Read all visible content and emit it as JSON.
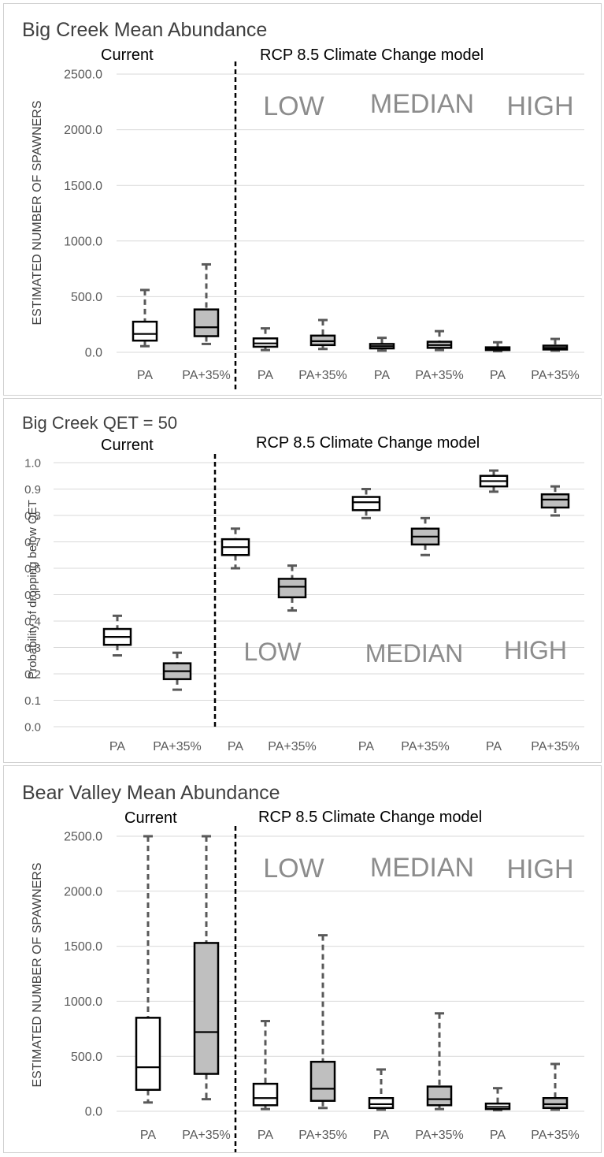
{
  "chart_data": [
    {
      "type": "boxplot",
      "title": "Big Creek Mean Abundance",
      "ylabel": "ESTIMATED NUMBER OF SPAWNERS",
      "ylim": [
        0,
        2500
      ],
      "yticks": [
        "0.0",
        "500.0",
        "1000.0",
        "1500.0",
        "2000.0",
        "2500.0"
      ],
      "grid": true,
      "current_label": "Current",
      "model_label": "RCP 8.5 Climate Change model",
      "scenario_labels": [
        "LOW",
        "MEDIAN",
        "HIGH"
      ],
      "categories": [
        "PA",
        "PA+35%",
        "PA",
        "PA+35%",
        "PA",
        "PA+35%",
        "PA",
        "PA+35%"
      ],
      "boxes": [
        {
          "min": 55,
          "q1": 105,
          "median": 165,
          "q3": 275,
          "max": 560,
          "fill": "#ffffff"
        },
        {
          "min": 75,
          "q1": 145,
          "median": 225,
          "q3": 385,
          "max": 790,
          "fill": "#bfbfbf"
        },
        {
          "min": 20,
          "q1": 50,
          "median": 80,
          "q3": 125,
          "max": 215,
          "fill": "#ffffff"
        },
        {
          "min": 30,
          "q1": 65,
          "median": 100,
          "q3": 150,
          "max": 290,
          "fill": "#bfbfbf"
        },
        {
          "min": 15,
          "q1": 35,
          "median": 55,
          "q3": 75,
          "max": 130,
          "fill": "#ffffff"
        },
        {
          "min": 20,
          "q1": 40,
          "median": 65,
          "q3": 95,
          "max": 190,
          "fill": "#bfbfbf"
        },
        {
          "min": 10,
          "q1": 20,
          "median": 35,
          "q3": 45,
          "max": 90,
          "fill": "#ffffff"
        },
        {
          "min": 15,
          "q1": 25,
          "median": 40,
          "q3": 60,
          "max": 120,
          "fill": "#bfbfbf"
        }
      ]
    },
    {
      "type": "boxplot",
      "title": "Big Creek  QET = 50",
      "ylabel": "Probability of dropping below QET",
      "ylim": [
        0,
        1
      ],
      "yticks": [
        "0.0",
        "0.1",
        "0.2",
        "0.3",
        "0.4",
        "0.5",
        "0.6",
        "0.7",
        "0.8",
        "0.9",
        "1.0"
      ],
      "grid": true,
      "current_label": "Current",
      "model_label": "RCP 8.5 Climate Change model",
      "scenario_labels": [
        "LOW",
        "MEDIAN",
        "HIGH"
      ],
      "categories": [
        "PA",
        "PA+35%",
        "PA",
        "PA+35%",
        "PA",
        "PA+35%",
        "PA",
        "PA+35%"
      ],
      "boxes": [
        {
          "min": 0.27,
          "q1": 0.31,
          "median": 0.34,
          "q3": 0.37,
          "max": 0.42,
          "fill": "#ffffff"
        },
        {
          "min": 0.14,
          "q1": 0.18,
          "median": 0.21,
          "q3": 0.24,
          "max": 0.28,
          "fill": "#bfbfbf"
        },
        {
          "min": 0.6,
          "q1": 0.65,
          "median": 0.68,
          "q3": 0.71,
          "max": 0.75,
          "fill": "#ffffff"
        },
        {
          "min": 0.44,
          "q1": 0.49,
          "median": 0.53,
          "q3": 0.56,
          "max": 0.61,
          "fill": "#bfbfbf"
        },
        {
          "min": 0.79,
          "q1": 0.82,
          "median": 0.85,
          "q3": 0.87,
          "max": 0.9,
          "fill": "#ffffff"
        },
        {
          "min": 0.65,
          "q1": 0.69,
          "median": 0.72,
          "q3": 0.75,
          "max": 0.79,
          "fill": "#bfbfbf"
        },
        {
          "min": 0.89,
          "q1": 0.91,
          "median": 0.93,
          "q3": 0.95,
          "max": 0.97,
          "fill": "#ffffff"
        },
        {
          "min": 0.8,
          "q1": 0.83,
          "median": 0.86,
          "q3": 0.88,
          "max": 0.91,
          "fill": "#bfbfbf"
        }
      ]
    },
    {
      "type": "boxplot",
      "title": "Bear Valley Mean Abundance",
      "ylabel": "ESTIMATED NUMBER OF SPAWNERS",
      "ylim": [
        0,
        2500
      ],
      "yticks": [
        "0.0",
        "500.0",
        "1000.0",
        "1500.0",
        "2000.0",
        "2500.0"
      ],
      "grid": true,
      "current_label": "Current",
      "model_label": "RCP 8.5 Climate Change model",
      "scenario_labels": [
        "LOW",
        "MEDIAN",
        "HIGH"
      ],
      "categories": [
        "PA",
        "PA+35%",
        "PA",
        "PA+35%",
        "PA",
        "PA+35%",
        "PA",
        "PA+35%"
      ],
      "boxes": [
        {
          "min": 80,
          "q1": 195,
          "median": 400,
          "q3": 850,
          "max": 2500,
          "fill": "#ffffff"
        },
        {
          "min": 110,
          "q1": 340,
          "median": 720,
          "q3": 1530,
          "max": 2500,
          "fill": "#bfbfbf"
        },
        {
          "min": 20,
          "q1": 55,
          "median": 120,
          "q3": 250,
          "max": 820,
          "fill": "#ffffff"
        },
        {
          "min": 30,
          "q1": 95,
          "median": 205,
          "q3": 450,
          "max": 1600,
          "fill": "#bfbfbf"
        },
        {
          "min": 15,
          "q1": 30,
          "median": 65,
          "q3": 120,
          "max": 380,
          "fill": "#ffffff"
        },
        {
          "min": 20,
          "q1": 55,
          "median": 110,
          "q3": 225,
          "max": 890,
          "fill": "#bfbfbf"
        },
        {
          "min": 10,
          "q1": 20,
          "median": 40,
          "q3": 70,
          "max": 210,
          "fill": "#ffffff"
        },
        {
          "min": 15,
          "q1": 30,
          "median": 65,
          "q3": 120,
          "max": 430,
          "fill": "#bfbfbf"
        }
      ]
    }
  ]
}
